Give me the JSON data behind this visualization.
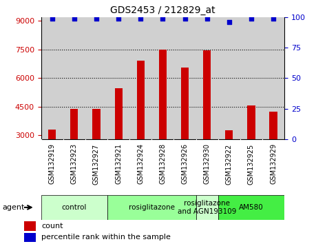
{
  "title": "GDS2453 / 212829_at",
  "samples": [
    "GSM132919",
    "GSM132923",
    "GSM132927",
    "GSM132921",
    "GSM132924",
    "GSM132928",
    "GSM132926",
    "GSM132930",
    "GSM132922",
    "GSM132925",
    "GSM132929"
  ],
  "counts": [
    3300,
    4400,
    4400,
    5450,
    6900,
    7500,
    6550,
    7450,
    3250,
    4550,
    4250
  ],
  "percentiles": [
    99,
    99,
    99,
    99,
    99,
    99,
    99,
    99,
    96,
    99,
    99
  ],
  "bar_color": "#cc0000",
  "dot_color": "#0000cc",
  "ylim_left": [
    2800,
    9200
  ],
  "ylim_right": [
    0,
    100
  ],
  "yticks_left": [
    3000,
    4500,
    6000,
    7500,
    9000
  ],
  "yticks_right": [
    0,
    25,
    50,
    75,
    100
  ],
  "col_bg_color": "#d0d0d0",
  "white_bg": "#ffffff",
  "groups": [
    {
      "label": "control",
      "start": 0,
      "end": 3,
      "color": "#ccffcc"
    },
    {
      "label": "rosiglitazone",
      "start": 3,
      "end": 7,
      "color": "#99ff99"
    },
    {
      "label": "rosiglitazone\nand AGN193109",
      "start": 7,
      "end": 8,
      "color": "#ccffcc"
    },
    {
      "label": "AM580",
      "start": 8,
      "end": 11,
      "color": "#44ee44"
    }
  ],
  "agent_label": "agent",
  "legend_count_label": "count",
  "legend_pct_label": "percentile rank within the sample",
  "left_label_color": "#cc0000",
  "right_label_color": "#0000cc",
  "bar_width": 0.35,
  "dotted_gridlines": [
    7500,
    6000,
    4500
  ]
}
